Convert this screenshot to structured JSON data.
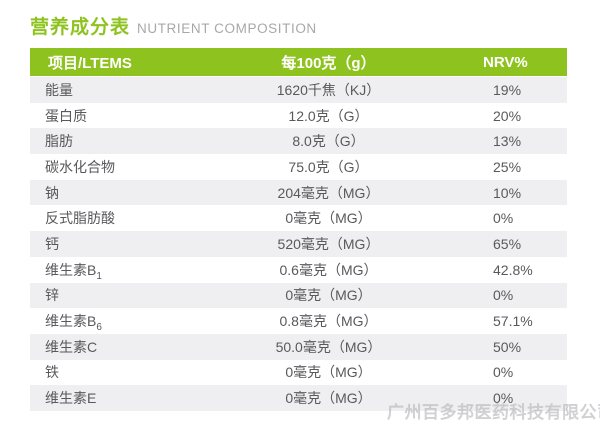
{
  "header": {
    "title_zh": "营养成分表",
    "title_en": "NUTRIENT COMPOSITION"
  },
  "colors": {
    "accent_green": "#8ec31f",
    "row_alt_gray": "#efeff1",
    "body_text": "#59595c",
    "subtitle_gray": "#a8a8aa"
  },
  "table": {
    "headers": [
      "项目/LTEMS",
      "每100克（g）",
      "NRV%"
    ],
    "rows": [
      {
        "label": "能量",
        "value": "1620千焦（KJ）",
        "nrv": "19%"
      },
      {
        "label": "蛋白质",
        "value": "12.0克（G）",
        "nrv": "20%"
      },
      {
        "label": "脂肪",
        "value": "8.0克（G）",
        "nrv": "13%"
      },
      {
        "label": "碳水化合物",
        "value": "75.0克（G）",
        "nrv": "25%"
      },
      {
        "label": "钠",
        "value": "204毫克（MG）",
        "nrv": "10%"
      },
      {
        "label": "反式脂肪酸",
        "value": "0毫克（MG）",
        "nrv": "0%"
      },
      {
        "label": "钙",
        "value": "520毫克（MG）",
        "nrv": "65%"
      },
      {
        "label": "维生素B",
        "label_sub": "1",
        "value": "0.6毫克（MG）",
        "nrv": "42.8%"
      },
      {
        "label": "锌",
        "value": "0毫克（MG）",
        "nrv": "0%"
      },
      {
        "label": "维生素B",
        "label_sub": "6",
        "value": "0.8毫克（MG）",
        "nrv": "57.1%"
      },
      {
        "label": "维生素C",
        "value": "50.0毫克（MG）",
        "nrv": "50%"
      },
      {
        "label": "铁",
        "value": "0毫克（MG）",
        "nrv": "0%"
      },
      {
        "label": "维生素E",
        "value": "0毫克（MG）",
        "nrv": "0%"
      }
    ]
  },
  "footer": {
    "watermark": "广州百多邦医药科技有限公司"
  }
}
